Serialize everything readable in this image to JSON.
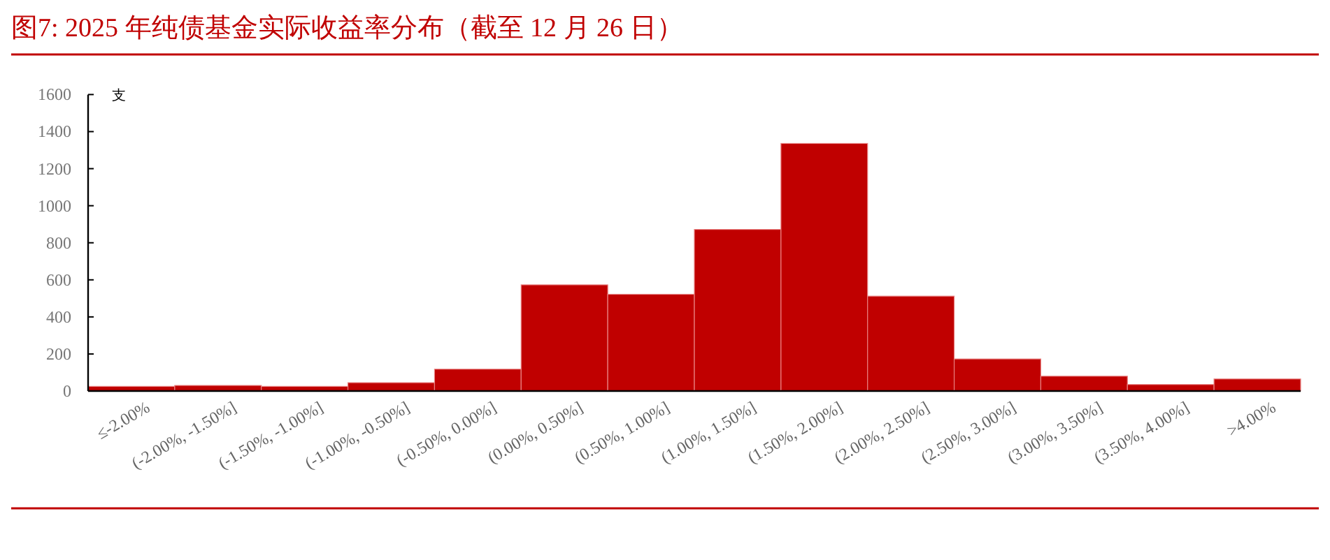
{
  "chart_data": {
    "type": "bar",
    "title": "图7:  2025 年纯债基金实际收益率分布（截至 12 月 26 日）",
    "ylabel": "支",
    "categories": [
      "≤-2.00%",
      "(-2.00%, -1.50%]",
      "(-1.50%, -1.00%]",
      "(-1.00%, -0.50%]",
      "(-0.50%, 0.00%]",
      "(0.00%, 0.50%]",
      "(0.50%, 1.00%]",
      "(1.00%, 1.50%]",
      "(1.50%, 2.00%]",
      "(2.00%, 2.50%]",
      "(2.50%, 3.00%]",
      "(3.00%, 3.50%]",
      "(3.50%, 4.00%]",
      ">4.00%"
    ],
    "values": [
      25,
      30,
      25,
      45,
      118,
      573,
      522,
      872,
      1336,
      512,
      173,
      80,
      35,
      65
    ],
    "color": "#c00000",
    "ylim": [
      0,
      1600
    ],
    "yticks": [
      0,
      200,
      400,
      600,
      800,
      1000,
      1200,
      1400,
      1600
    ]
  }
}
